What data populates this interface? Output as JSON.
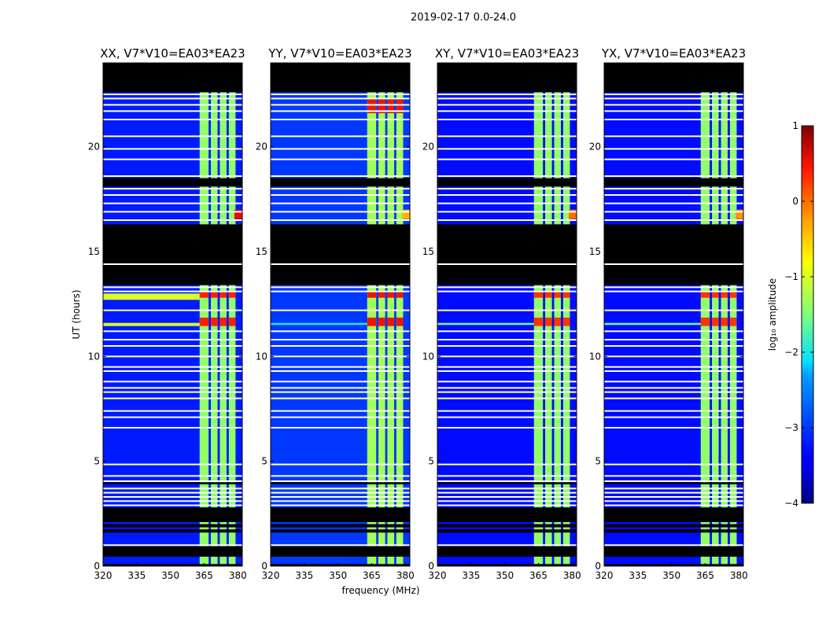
{
  "chart_data": {
    "type": "heatmap",
    "suptitle": "2019-02-17 0.0-24.0",
    "xlabel": "frequency (MHz)",
    "ylabel": "UT (hours)",
    "xlim": [
      320,
      382
    ],
    "ylim": [
      0,
      24
    ],
    "xticks": [
      320,
      335,
      350,
      365,
      380
    ],
    "yticks": [
      0,
      5,
      10,
      15,
      20
    ],
    "colormap": "jet",
    "colorbar": {
      "label": "log₁₀ amplitude",
      "range": [
        -4,
        1
      ],
      "ticks": [
        -4,
        -3,
        -2,
        -1,
        0,
        1
      ],
      "tick_labels": [
        "−4",
        "−3",
        "−2",
        "−1",
        "0",
        "1"
      ]
    },
    "flagged_time_ranges_hours": [
      [
        0.0,
        0.1
      ],
      [
        0.45,
        0.95
      ],
      [
        1.6,
        1.75
      ],
      [
        1.85,
        2.0
      ],
      [
        2.1,
        2.8
      ],
      [
        3.9,
        4.0
      ],
      [
        13.4,
        16.3
      ],
      [
        18.1,
        18.5
      ],
      [
        22.6,
        24.0
      ]
    ],
    "blank_time_lines_hours": [
      1.0,
      2.9,
      3.1,
      3.3,
      3.5,
      3.7,
      4.05,
      4.3,
      4.85,
      6.6,
      7.1,
      7.4,
      8.0,
      8.3,
      8.5,
      8.8,
      9.3,
      9.5,
      10.0,
      10.5,
      10.8,
      11.2,
      12.2,
      13.1,
      13.3,
      14.4,
      16.5,
      16.9,
      17.3,
      17.7,
      18.0,
      18.6,
      19.4,
      19.9,
      20.5,
      21.3,
      21.7,
      22.0,
      22.3,
      22.5
    ],
    "rfi_frequency_bands_mhz": [
      [
        363,
        367
      ],
      [
        368,
        371
      ],
      [
        372,
        375
      ],
      [
        376,
        379
      ]
    ],
    "panels": [
      {
        "polarization": "XX",
        "title": "XX, V7*V10=EA03*EA23",
        "baseline_log_amp": -3.2,
        "rfi_log_amp": -1.4,
        "rfi_flare_log_amp": 0.4,
        "flare_hours": [
          [
            11.45,
            11.85
          ],
          [
            12.8,
            13.1
          ]
        ],
        "flare_band_width": "full",
        "wideband_hours": [
          [
            11.45,
            11.6
          ],
          [
            12.7,
            13.0
          ]
        ],
        "wideband_log_amp": -1.0,
        "corner_hot_spot_hours": [
          16.55,
          17.0
        ],
        "corner_log_amp": 0.6
      },
      {
        "polarization": "YY",
        "title": "YY, V7*V10=EA03*EA23",
        "baseline_log_amp": -3.0,
        "rfi_log_amp": -1.3,
        "rfi_flare_log_amp": 0.5,
        "flare_hours": [
          [
            11.45,
            11.85
          ],
          [
            12.8,
            13.1
          ],
          [
            21.6,
            22.3
          ]
        ],
        "flare_band_width": "full",
        "wideband_hours": [
          [
            11.5,
            11.6
          ]
        ],
        "wideband_log_amp": -2.0,
        "corner_hot_spot_hours": [
          16.55,
          17.0
        ],
        "corner_log_amp": -0.4
      },
      {
        "polarization": "XY",
        "title": "XY, V7*V10=EA03*EA23",
        "baseline_log_amp": -3.3,
        "rfi_log_amp": -1.4,
        "rfi_flare_log_amp": 0.3,
        "flare_hours": [
          [
            11.45,
            11.85
          ],
          [
            12.8,
            13.1
          ]
        ],
        "flare_band_width": "full",
        "wideband_hours": [
          [
            11.5,
            11.6
          ]
        ],
        "wideband_log_amp": -1.6,
        "corner_hot_spot_hours": [
          16.55,
          17.0
        ],
        "corner_log_amp": 0.0
      },
      {
        "polarization": "YX",
        "title": "YX, V7*V10=EA03*EA23",
        "baseline_log_amp": -3.3,
        "rfi_log_amp": -1.4,
        "rfi_flare_log_amp": 0.3,
        "flare_hours": [
          [
            11.45,
            11.85
          ],
          [
            12.8,
            13.1
          ]
        ],
        "flare_band_width": "full",
        "wideband_hours": [
          [
            11.5,
            11.6
          ]
        ],
        "wideband_log_amp": -1.6,
        "corner_hot_spot_hours": [
          16.55,
          17.0
        ],
        "corner_log_amp": -0.2
      }
    ]
  }
}
